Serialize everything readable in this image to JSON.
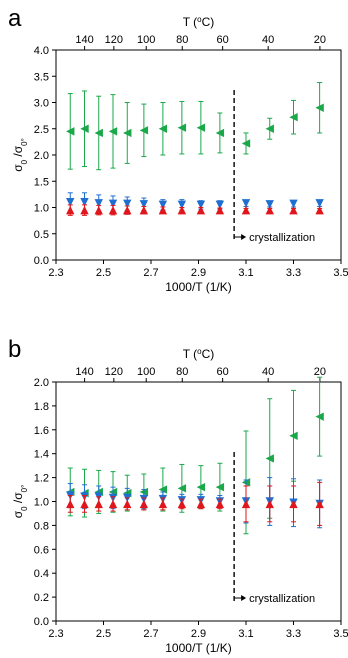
{
  "chart_data": [
    {
      "type": "scatter",
      "panel_label": "a",
      "xlabel": "1000/T (1/K)",
      "ylabel_base": "σ",
      "ylabel_sub1": "0",
      "ylabel_sep": " /σ",
      "ylabel_sub2": "0°",
      "top_axis_label": "T (",
      "top_axis_sup": "o",
      "top_axis_unit": "C)",
      "xlim": [
        2.3,
        3.5
      ],
      "ylim": [
        0.0,
        4.0
      ],
      "xticks": [
        "2.3",
        "2.5",
        "2.7",
        "2.9",
        "3.1",
        "3.3",
        "3.5"
      ],
      "yticks": [
        "0.0",
        "0.5",
        "1.0",
        "1.5",
        "2.0",
        "2.5",
        "3.0",
        "3.5",
        "4.0"
      ],
      "top_ticks": [
        {
          "label": "140",
          "celsius": 140
        },
        {
          "label": "120",
          "celsius": 120
        },
        {
          "label": "100",
          "celsius": 100
        },
        {
          "label": "80",
          "celsius": 80
        },
        {
          "label": "60",
          "celsius": 60
        },
        {
          "label": "40",
          "celsius": 40
        },
        {
          "label": "20",
          "celsius": 20
        }
      ],
      "vline_x": 3.05,
      "annotation": "crystallization",
      "colors": {
        "green": "#1aa84a",
        "blue": "#1f6fd0",
        "red": "#e0161c"
      },
      "series": [
        {
          "color": "green",
          "marker": "triangle-left",
          "x": [
            2.36,
            2.42,
            2.48,
            2.54,
            2.6,
            2.67,
            2.75,
            2.83,
            2.91,
            2.99,
            3.1,
            3.2,
            3.3,
            3.41
          ],
          "y": [
            2.45,
            2.5,
            2.42,
            2.45,
            2.42,
            2.47,
            2.5,
            2.52,
            2.52,
            2.42,
            2.22,
            2.5,
            2.72,
            2.9
          ],
          "err": [
            0.72,
            0.72,
            0.7,
            0.7,
            0.58,
            0.5,
            0.5,
            0.5,
            0.5,
            0.38,
            0.2,
            0.2,
            0.32,
            0.48
          ]
        },
        {
          "color": "blue",
          "marker": "triangle-down",
          "x": [
            2.36,
            2.42,
            2.48,
            2.54,
            2.6,
            2.67,
            2.75,
            2.83,
            2.91,
            2.99,
            3.1,
            3.2,
            3.3,
            3.41
          ],
          "y": [
            1.1,
            1.1,
            1.08,
            1.07,
            1.07,
            1.06,
            1.05,
            1.05,
            1.05,
            1.05,
            1.08,
            1.06,
            1.07,
            1.08
          ],
          "err": [
            0.18,
            0.18,
            0.16,
            0.15,
            0.13,
            0.12,
            0.1,
            0.1,
            0.08,
            0.08,
            0.06,
            0.05,
            0.06,
            0.06
          ]
        },
        {
          "color": "red",
          "marker": "triangle-up",
          "x": [
            2.36,
            2.42,
            2.48,
            2.54,
            2.6,
            2.67,
            2.75,
            2.83,
            2.91,
            2.99,
            3.1,
            3.2,
            3.3,
            3.41
          ],
          "y": [
            0.95,
            0.95,
            0.95,
            0.95,
            0.95,
            0.95,
            0.95,
            0.95,
            0.95,
            0.95,
            0.95,
            0.95,
            0.95,
            0.95
          ],
          "err": [
            0.1,
            0.1,
            0.09,
            0.09,
            0.08,
            0.07,
            0.06,
            0.05,
            0.05,
            0.04,
            0.03,
            0.03,
            0.03,
            0.03
          ]
        }
      ]
    },
    {
      "type": "scatter",
      "panel_label": "b",
      "xlabel": "1000/T (1/K)",
      "ylabel_base": "σ",
      "ylabel_sub1": "0",
      "ylabel_sep": " /σ",
      "ylabel_sub2": "0°",
      "top_axis_label": "T (",
      "top_axis_sup": "o",
      "top_axis_unit": "C)",
      "xlim": [
        2.3,
        3.5
      ],
      "ylim": [
        0.0,
        2.0
      ],
      "xticks": [
        "2.3",
        "2.5",
        "2.7",
        "2.9",
        "3.1",
        "3.3",
        "3.5"
      ],
      "yticks": [
        "0.0",
        "0.2",
        "0.4",
        "0.6",
        "0.8",
        "1.0",
        "1.2",
        "1.4",
        "1.6",
        "1.8",
        "2.0"
      ],
      "top_ticks": [
        {
          "label": "140",
          "celsius": 140
        },
        {
          "label": "120",
          "celsius": 120
        },
        {
          "label": "100",
          "celsius": 100
        },
        {
          "label": "80",
          "celsius": 80
        },
        {
          "label": "60",
          "celsius": 60
        },
        {
          "label": "40",
          "celsius": 40
        },
        {
          "label": "20",
          "celsius": 20
        }
      ],
      "vline_x": 3.05,
      "annotation": "crystallization",
      "colors": {
        "green": "#1aa84a",
        "blue": "#1f6fd0",
        "red": "#e0161c"
      },
      "series": [
        {
          "color": "green",
          "marker": "triangle-left",
          "x": [
            2.36,
            2.42,
            2.48,
            2.54,
            2.6,
            2.67,
            2.75,
            2.83,
            2.91,
            2.99,
            3.1,
            3.2,
            3.3,
            3.41
          ],
          "y": [
            1.08,
            1.07,
            1.08,
            1.08,
            1.07,
            1.08,
            1.1,
            1.11,
            1.12,
            1.12,
            1.16,
            1.36,
            1.55,
            1.71
          ],
          "err": [
            0.2,
            0.2,
            0.18,
            0.17,
            0.15,
            0.15,
            0.18,
            0.2,
            0.18,
            0.2,
            0.43,
            0.5,
            0.38,
            0.33
          ]
        },
        {
          "color": "blue",
          "marker": "triangle-down",
          "x": [
            2.36,
            2.42,
            2.48,
            2.54,
            2.6,
            2.67,
            2.75,
            2.83,
            2.91,
            2.99,
            3.1,
            3.2,
            3.3,
            3.41
          ],
          "y": [
            1.05,
            1.04,
            1.04,
            1.03,
            1.03,
            1.02,
            1.02,
            1.01,
            1.01,
            1.0,
            1.0,
            1.0,
            0.99,
            0.98
          ],
          "err": [
            0.1,
            0.1,
            0.09,
            0.09,
            0.08,
            0.08,
            0.06,
            0.05,
            0.05,
            0.05,
            0.18,
            0.2,
            0.2,
            0.2
          ]
        },
        {
          "color": "red",
          "marker": "triangle-up",
          "x": [
            2.36,
            2.42,
            2.48,
            2.54,
            2.6,
            2.67,
            2.75,
            2.83,
            2.91,
            2.99,
            3.1,
            3.2,
            3.3,
            3.41
          ],
          "y": [
            0.98,
            0.98,
            0.98,
            0.98,
            0.98,
            0.98,
            0.98,
            0.98,
            0.98,
            0.98,
            0.98,
            0.98,
            0.98,
            0.98
          ],
          "err": [
            0.07,
            0.07,
            0.06,
            0.06,
            0.05,
            0.05,
            0.05,
            0.04,
            0.04,
            0.04,
            0.15,
            0.15,
            0.15,
            0.18
          ]
        }
      ]
    }
  ]
}
